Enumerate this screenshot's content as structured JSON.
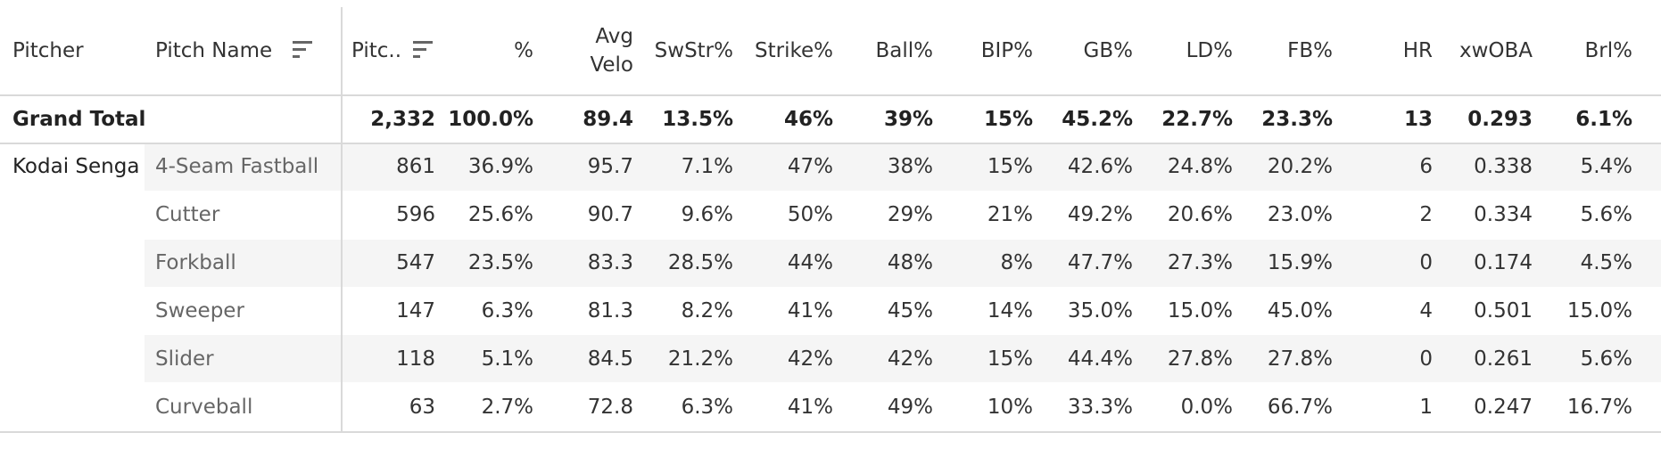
{
  "columns": {
    "pitcher": "Pitcher",
    "pitch_name": "Pitch Name",
    "pitches": "Pitc..",
    "pct": "%",
    "avg_velo_1": "Avg",
    "avg_velo_2": "Velo",
    "swstr": "SwStr%",
    "strike": "Strike%",
    "ball": "Ball%",
    "bip": "BIP%",
    "gb": "GB%",
    "ld": "LD%",
    "fb": "FB%",
    "hr": "HR",
    "xwoba": "xwOBA",
    "brl": "Brl%"
  },
  "icons": {
    "pitch_name_sort": "sort-descending-icon",
    "pitches_sort": "sort-descending-icon"
  },
  "grand_total": {
    "label": "Grand Total",
    "values": [
      "2,332",
      "100.0%",
      "89.4",
      "13.5%",
      "46%",
      "39%",
      "15%",
      "45.2%",
      "22.7%",
      "23.3%",
      "13",
      "0.293",
      "6.1%"
    ]
  },
  "pitcher_name": "Kodai Senga",
  "rows": [
    {
      "pitch": "4-Seam Fastball",
      "values": [
        "861",
        "36.9%",
        "95.7",
        "7.1%",
        "47%",
        "38%",
        "15%",
        "42.6%",
        "24.8%",
        "20.2%",
        "6",
        "0.338",
        "5.4%"
      ]
    },
    {
      "pitch": "Cutter",
      "values": [
        "596",
        "25.6%",
        "90.7",
        "9.6%",
        "50%",
        "29%",
        "21%",
        "49.2%",
        "20.6%",
        "23.0%",
        "2",
        "0.334",
        "5.6%"
      ]
    },
    {
      "pitch": "Forkball",
      "values": [
        "547",
        "23.5%",
        "83.3",
        "28.5%",
        "44%",
        "48%",
        "8%",
        "47.7%",
        "27.3%",
        "15.9%",
        "0",
        "0.174",
        "4.5%"
      ]
    },
    {
      "pitch": "Sweeper",
      "values": [
        "147",
        "6.3%",
        "81.3",
        "8.2%",
        "41%",
        "45%",
        "14%",
        "35.0%",
        "15.0%",
        "45.0%",
        "4",
        "0.501",
        "15.0%"
      ]
    },
    {
      "pitch": "Slider",
      "values": [
        "118",
        "5.1%",
        "84.5",
        "21.2%",
        "42%",
        "42%",
        "15%",
        "44.4%",
        "27.8%",
        "27.8%",
        "0",
        "0.261",
        "5.6%"
      ]
    },
    {
      "pitch": "Curveball",
      "values": [
        "63",
        "2.7%",
        "72.8",
        "6.3%",
        "41%",
        "49%",
        "10%",
        "33.3%",
        "0.0%",
        "66.7%",
        "1",
        "0.247",
        "16.7%"
      ]
    }
  ],
  "colors": {
    "stripe": "#f5f5f5",
    "gridline": "#d9d9d9",
    "text": "#333333",
    "pitch_text": "#666666"
  }
}
